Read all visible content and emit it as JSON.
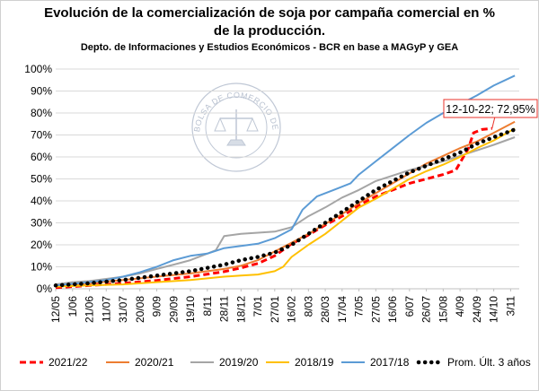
{
  "chart_data": {
    "type": "line",
    "title": "Evolución de la comercialización de soja por campaña comercial en %",
    "title_line2": "de la producción.",
    "subtitle": "Depto. de Informaciones y Estudios Económicos - BCR en base a MAGyP y GEA",
    "xlabel": "",
    "ylabel": "",
    "ylim": [
      0,
      100
    ],
    "yticks": [
      "0%",
      "10%",
      "20%",
      "30%",
      "40%",
      "50%",
      "60%",
      "70%",
      "80%",
      "90%",
      "100%"
    ],
    "x_tick_labels": [
      "12/05",
      "1/06",
      "21/06",
      "11/07",
      "31/07",
      "20/08",
      "9/09",
      "29/09",
      "19/10",
      "8/11",
      "28/11",
      "18/12",
      "7/01",
      "27/01",
      "16/02",
      "8/03",
      "28/03",
      "17/04",
      "7/05",
      "27/05",
      "16/06",
      "6/07",
      "26/07",
      "15/08",
      "4/09",
      "24/09",
      "14/10",
      "3/11"
    ],
    "x_dates": [
      "2021-05-12",
      "2021-06-01",
      "2021-06-21",
      "2021-07-11",
      "2021-07-31",
      "2021-08-20",
      "2021-09-09",
      "2021-09-29",
      "2021-10-19",
      "2021-11-08",
      "2021-11-28",
      "2021-12-18",
      "2022-01-07",
      "2022-01-27",
      "2022-02-16",
      "2022-03-08",
      "2022-03-28",
      "2022-04-17",
      "2022-05-07",
      "2022-05-27",
      "2022-06-16",
      "2022-07-06",
      "2022-07-26",
      "2022-08-15",
      "2022-09-04",
      "2022-09-24",
      "2022-10-14",
      "2022-11-03"
    ],
    "grid": true,
    "legend_position": "bottom",
    "annotation": {
      "text": "12-10-22; 72,95%",
      "date": "2022-10-12",
      "value": 72.95,
      "color": "#e8322a"
    },
    "watermark": "BOLSA DE COMERCIO DE ROSARIO",
    "series": [
      {
        "name": "2021/22",
        "color": "#ff0000",
        "style": "dashed",
        "points": [
          [
            "2021-05-12",
            0.5
          ],
          [
            "2021-06-21",
            1.5
          ],
          [
            "2021-07-31",
            2.5
          ],
          [
            "2021-09-09",
            3.8
          ],
          [
            "2021-10-19",
            5.5
          ],
          [
            "2021-11-28",
            7.8
          ],
          [
            "2021-12-18",
            9.5
          ],
          [
            "2022-01-07",
            11.5
          ],
          [
            "2022-01-27",
            15.0
          ],
          [
            "2022-02-16",
            20.5
          ],
          [
            "2022-03-08",
            24.5
          ],
          [
            "2022-03-28",
            29.0
          ],
          [
            "2022-04-17",
            33.0
          ],
          [
            "2022-05-07",
            38.0
          ],
          [
            "2022-05-27",
            42.0
          ],
          [
            "2022-06-16",
            45.0
          ],
          [
            "2022-07-06",
            48.0
          ],
          [
            "2022-07-26",
            50.0
          ],
          [
            "2022-08-15",
            52.0
          ],
          [
            "2022-08-30",
            54.0
          ],
          [
            "2022-09-14",
            64.0
          ],
          [
            "2022-09-20",
            71.0
          ],
          [
            "2022-09-30",
            72.5
          ],
          [
            "2022-10-12",
            72.95
          ]
        ]
      },
      {
        "name": "2020/21",
        "color": "#ed7d31",
        "style": "solid",
        "points": [
          [
            "2021-05-12",
            1.0
          ],
          [
            "2021-06-21",
            2.5
          ],
          [
            "2021-07-31",
            4.0
          ],
          [
            "2021-09-09",
            5.5
          ],
          [
            "2021-10-19",
            7.0
          ],
          [
            "2021-11-28",
            9.0
          ],
          [
            "2021-12-18",
            10.5
          ],
          [
            "2022-01-07",
            13.0
          ],
          [
            "2022-01-27",
            17.0
          ],
          [
            "2022-02-16",
            21.0
          ],
          [
            "2022-03-08",
            25.0
          ],
          [
            "2022-03-28",
            29.5
          ],
          [
            "2022-04-17",
            34.0
          ],
          [
            "2022-05-07",
            39.0
          ],
          [
            "2022-05-27",
            43.5
          ],
          [
            "2022-06-16",
            48.0
          ],
          [
            "2022-07-06",
            52.5
          ],
          [
            "2022-07-26",
            57.0
          ],
          [
            "2022-08-15",
            60.5
          ],
          [
            "2022-09-04",
            64.0
          ],
          [
            "2022-09-24",
            67.0
          ],
          [
            "2022-10-14",
            71.0
          ],
          [
            "2022-11-08",
            76.0
          ]
        ]
      },
      {
        "name": "2019/20",
        "color": "#a5a5a5",
        "style": "solid",
        "points": [
          [
            "2021-05-12",
            2.0
          ],
          [
            "2021-06-01",
            3.0
          ],
          [
            "2021-06-21",
            3.5
          ],
          [
            "2021-07-11",
            4.5
          ],
          [
            "2021-07-31",
            5.5
          ],
          [
            "2021-08-20",
            7.0
          ],
          [
            "2021-09-09",
            9.0
          ],
          [
            "2021-09-29",
            11.0
          ],
          [
            "2021-10-19",
            13.0
          ],
          [
            "2021-11-08",
            16.0
          ],
          [
            "2021-11-18",
            17.5
          ],
          [
            "2021-11-28",
            24.0
          ],
          [
            "2021-12-18",
            25.0
          ],
          [
            "2022-01-07",
            25.5
          ],
          [
            "2022-01-27",
            26.0
          ],
          [
            "2022-02-16",
            28.0
          ],
          [
            "2022-03-08",
            33.0
          ],
          [
            "2022-03-28",
            37.0
          ],
          [
            "2022-04-17",
            41.5
          ],
          [
            "2022-05-07",
            45.0
          ],
          [
            "2022-05-27",
            49.0
          ],
          [
            "2022-06-16",
            51.5
          ],
          [
            "2022-07-06",
            54.0
          ],
          [
            "2022-07-26",
            56.0
          ],
          [
            "2022-08-15",
            58.0
          ],
          [
            "2022-09-04",
            60.5
          ],
          [
            "2022-09-24",
            63.0
          ],
          [
            "2022-10-14",
            65.5
          ],
          [
            "2022-11-08",
            69.0
          ]
        ]
      },
      {
        "name": "2018/19",
        "color": "#ffc000",
        "style": "solid",
        "points": [
          [
            "2021-05-12",
            1.0
          ],
          [
            "2021-06-21",
            1.5
          ],
          [
            "2021-07-31",
            2.0
          ],
          [
            "2021-09-09",
            3.0
          ],
          [
            "2021-10-19",
            4.0
          ],
          [
            "2021-11-28",
            5.5
          ],
          [
            "2021-12-18",
            6.0
          ],
          [
            "2022-01-07",
            6.5
          ],
          [
            "2022-01-27",
            8.0
          ],
          [
            "2022-02-06",
            10.0
          ],
          [
            "2022-02-16",
            14.5
          ],
          [
            "2022-03-08",
            20.0
          ],
          [
            "2022-03-28",
            25.0
          ],
          [
            "2022-04-17",
            31.0
          ],
          [
            "2022-05-07",
            37.0
          ],
          [
            "2022-05-27",
            41.0
          ],
          [
            "2022-06-16",
            45.5
          ],
          [
            "2022-07-06",
            50.0
          ],
          [
            "2022-07-26",
            53.5
          ],
          [
            "2022-08-15",
            56.5
          ],
          [
            "2022-09-04",
            60.0
          ],
          [
            "2022-09-24",
            64.0
          ],
          [
            "2022-10-14",
            67.5
          ],
          [
            "2022-11-08",
            73.0
          ]
        ]
      },
      {
        "name": "2017/18",
        "color": "#5b9bd5",
        "style": "solid",
        "points": [
          [
            "2021-05-12",
            1.5
          ],
          [
            "2021-06-21",
            3.0
          ],
          [
            "2021-07-11",
            4.0
          ],
          [
            "2021-07-31",
            5.5
          ],
          [
            "2021-08-20",
            7.5
          ],
          [
            "2021-09-09",
            10.0
          ],
          [
            "2021-09-29",
            13.0
          ],
          [
            "2021-10-19",
            15.0
          ],
          [
            "2021-11-08",
            16.0
          ],
          [
            "2021-11-28",
            18.5
          ],
          [
            "2021-12-18",
            19.5
          ],
          [
            "2022-01-07",
            20.5
          ],
          [
            "2022-01-27",
            23.0
          ],
          [
            "2022-02-16",
            27.0
          ],
          [
            "2022-03-01",
            36.0
          ],
          [
            "2022-03-18",
            42.0
          ],
          [
            "2022-04-07",
            45.0
          ],
          [
            "2022-04-27",
            48.0
          ],
          [
            "2022-05-07",
            52.0
          ],
          [
            "2022-05-27",
            58.0
          ],
          [
            "2022-06-16",
            64.0
          ],
          [
            "2022-07-06",
            70.0
          ],
          [
            "2022-07-26",
            75.5
          ],
          [
            "2022-08-15",
            80.0
          ],
          [
            "2022-09-04",
            84.0
          ],
          [
            "2022-09-24",
            88.0
          ],
          [
            "2022-10-14",
            92.5
          ],
          [
            "2022-11-08",
            97.0
          ]
        ]
      },
      {
        "name": "Prom. Últ. 3 años",
        "color": "#000000",
        "style": "dotted",
        "points": [
          [
            "2021-05-12",
            1.5
          ],
          [
            "2021-06-21",
            2.5
          ],
          [
            "2021-07-31",
            4.0
          ],
          [
            "2021-09-09",
            6.0
          ],
          [
            "2021-10-19",
            8.0
          ],
          [
            "2021-11-28",
            11.0
          ],
          [
            "2021-12-18",
            13.0
          ],
          [
            "2022-01-07",
            14.5
          ],
          [
            "2022-01-27",
            16.5
          ],
          [
            "2022-02-16",
            20.0
          ],
          [
            "2022-03-08",
            25.0
          ],
          [
            "2022-03-28",
            30.0
          ],
          [
            "2022-04-17",
            35.0
          ],
          [
            "2022-05-07",
            40.0
          ],
          [
            "2022-05-27",
            45.0
          ],
          [
            "2022-06-16",
            49.0
          ],
          [
            "2022-07-06",
            53.0
          ],
          [
            "2022-07-26",
            56.0
          ],
          [
            "2022-08-15",
            59.0
          ],
          [
            "2022-09-04",
            62.0
          ],
          [
            "2022-09-24",
            66.0
          ],
          [
            "2022-10-14",
            69.0
          ],
          [
            "2022-11-08",
            72.5
          ]
        ]
      }
    ]
  }
}
